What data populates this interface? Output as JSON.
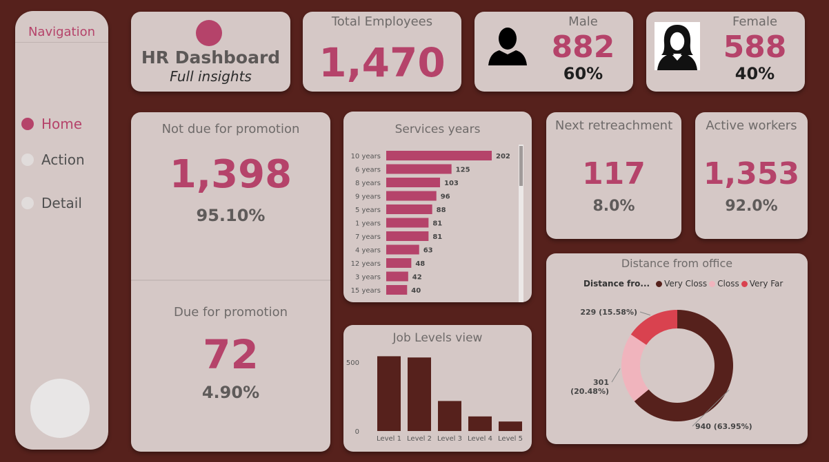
{
  "nav": {
    "title": "Navigation",
    "items": [
      {
        "label": "Home"
      },
      {
        "label": "Action"
      },
      {
        "label": "Detail"
      }
    ]
  },
  "brand": {
    "title": "HR Dashboard",
    "subtitle": "Full insights"
  },
  "total": {
    "title": "Total Employees",
    "value": "1,470"
  },
  "male": {
    "title": "Male",
    "value": "882",
    "pct": "60%"
  },
  "female": {
    "title": "Female",
    "value": "588",
    "pct": "40%"
  },
  "promotion": {
    "not_due_title": "Not due for promotion",
    "not_due_value": "1,398",
    "not_due_pct": "95.10%",
    "due_title": "Due for promotion",
    "due_value": "72",
    "due_pct": "4.90%"
  },
  "retirement": {
    "title": "Next retreachment",
    "value": "117",
    "pct": "8.0%"
  },
  "active": {
    "title": "Active workers",
    "value": "1,353",
    "pct": "92.0%"
  },
  "colors": {
    "accent": "#b5436a",
    "bg": "#56211c",
    "card": "#d5c8c6"
  },
  "chart_data": [
    {
      "id": "services",
      "type": "bar",
      "orientation": "horizontal",
      "title": "Services years",
      "categories": [
        "10 years",
        "6 years",
        "8 years",
        "9 years",
        "5 years",
        "1 years",
        "7 years",
        "4 years",
        "12 years",
        "3 years",
        "15 years"
      ],
      "values": [
        202,
        125,
        103,
        96,
        88,
        81,
        81,
        63,
        48,
        42,
        40
      ],
      "color": "#b5436a"
    },
    {
      "id": "jobs",
      "type": "bar",
      "title": "Job Levels view",
      "categories": [
        "Level 1",
        "Level 2",
        "Level 3",
        "Level 4",
        "Level 5"
      ],
      "values": [
        543,
        534,
        218,
        106,
        69
      ],
      "yticks": [
        "0",
        "500"
      ],
      "ylim": [
        0,
        560
      ],
      "color": "#56211c"
    },
    {
      "id": "distance",
      "type": "pie",
      "title": "Distance from office",
      "legend_title": "Distance fro...",
      "categories": [
        "Very Closs",
        "Closs",
        "Very Far"
      ],
      "values": [
        940,
        301,
        229
      ],
      "labels": [
        "940 (63.95%)",
        "301 (20.48%)",
        "229 (15.58%)"
      ],
      "colors": [
        "#56211c",
        "#f0b4bd",
        "#d9424f"
      ]
    }
  ]
}
